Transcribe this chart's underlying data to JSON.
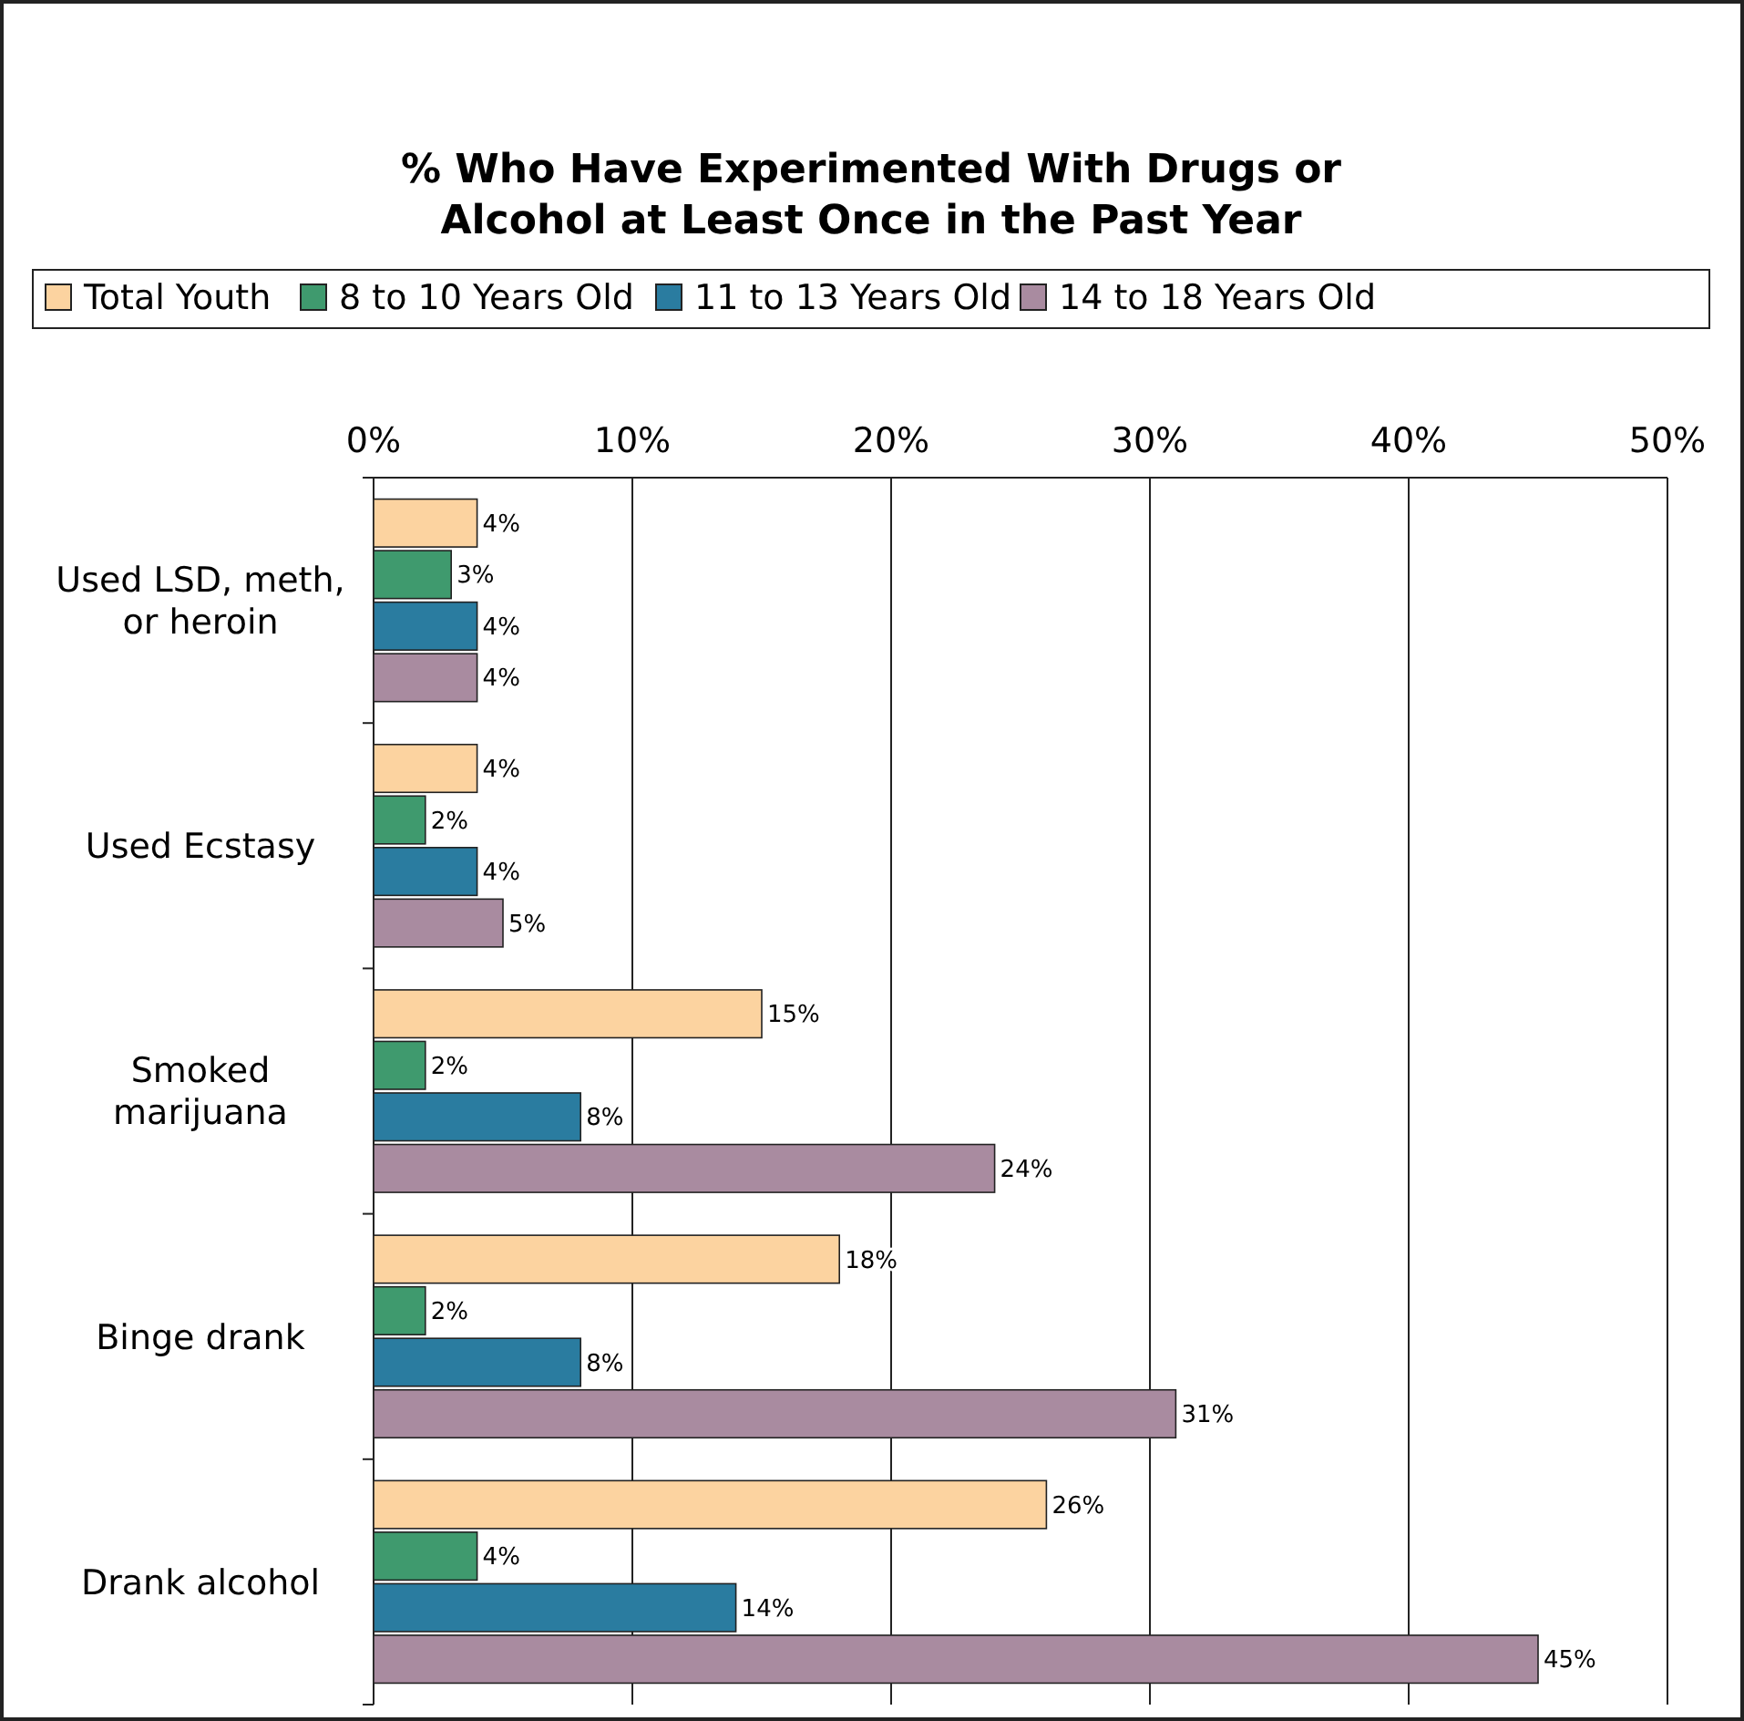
{
  "chart_data": {
    "type": "bar",
    "orientation": "horizontal",
    "title": "% Who Have Experimented With Drugs or Alcohol at Least Once in the Past Year",
    "categories": [
      "Used LSD, meth, or heroin",
      "Used Ecstasy",
      "Smoked marijuana",
      "Binge drank",
      "Drank alcohol"
    ],
    "series": [
      {
        "name": "Total Youth",
        "color": "#fcd3a0",
        "values": [
          4,
          4,
          15,
          18,
          26
        ],
        "value_labels": [
          "4%",
          "4%",
          "15%",
          "18%",
          "26%"
        ]
      },
      {
        "name": "8 to 10 Years Old",
        "color": "#3f9a6e",
        "values": [
          3,
          2,
          2,
          2,
          4
        ],
        "value_labels": [
          "3%",
          "2%",
          "2%",
          "2%",
          "4%"
        ]
      },
      {
        "name": "11 to 13 Years Old",
        "color": "#2a7ca0",
        "values": [
          4,
          4,
          8,
          8,
          14
        ],
        "value_labels": [
          "4%",
          "4%",
          "8%",
          "8%",
          "14%"
        ]
      },
      {
        "name": "14 to 18 Years Old",
        "color": "#a98ba0",
        "values": [
          4,
          5,
          24,
          31,
          45
        ],
        "value_labels": [
          "4%",
          "5%",
          "24%",
          "31%",
          "45%"
        ]
      }
    ],
    "xlim": [
      0,
      50
    ],
    "xticks": [
      {
        "value": 0,
        "label": "0%"
      },
      {
        "value": 10,
        "label": "10%"
      },
      {
        "value": 20,
        "label": "20%"
      },
      {
        "value": 30,
        "label": "30%"
      },
      {
        "value": 40,
        "label": "40%"
      },
      {
        "value": 50,
        "label": "50%"
      }
    ],
    "grid": "x",
    "legend": "top"
  }
}
